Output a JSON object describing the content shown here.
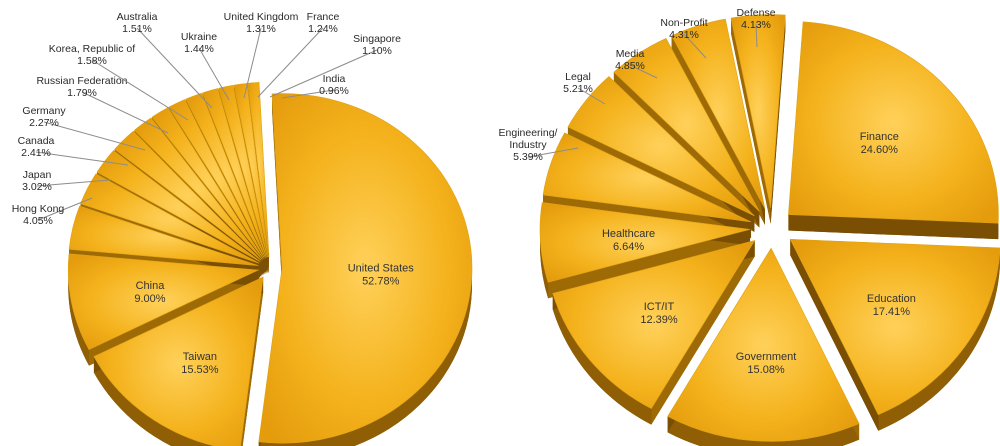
{
  "chart_data": [
    {
      "type": "pie",
      "style": "exploded 3d pie",
      "slice_color": "#F3B019",
      "side_color": "#8F5E05",
      "slices": [
        {
          "label": "United States",
          "value": 52.78,
          "display": "52.78%"
        },
        {
          "label": "Taiwan",
          "value": 15.53,
          "display": "15.53%"
        },
        {
          "label": "China",
          "value": 9.0,
          "display": "9.00%"
        },
        {
          "label": "Hong Kong",
          "value": 4.05,
          "display": "4.05%"
        },
        {
          "label": "Japan",
          "value": 3.02,
          "display": "3.02%"
        },
        {
          "label": "Canada",
          "value": 2.41,
          "display": "2.41%"
        },
        {
          "label": "Germany",
          "value": 2.27,
          "display": "2.27%"
        },
        {
          "label": "Russian Federation",
          "value": 1.79,
          "display": "1.79%"
        },
        {
          "label": "Korea, Republic of",
          "value": 1.58,
          "display": "1.58%"
        },
        {
          "label": "Australia",
          "value": 1.51,
          "display": "1.51%"
        },
        {
          "label": "Ukraine",
          "value": 1.44,
          "display": "1.44%"
        },
        {
          "label": "United Kingdom",
          "value": 1.31,
          "display": "1.31%"
        },
        {
          "label": "France",
          "value": 1.24,
          "display": "1.24%"
        },
        {
          "label": "Singapore",
          "value": 1.1,
          "display": "1.10%"
        },
        {
          "label": "India",
          "value": 0.96,
          "display": "0.96%"
        }
      ]
    },
    {
      "type": "pie",
      "style": "exploded 3d pie",
      "slice_color": "#F3B019",
      "side_color": "#8F5E05",
      "slices": [
        {
          "label": "Finance",
          "value": 24.6,
          "display": "24.60%"
        },
        {
          "label": "Education",
          "value": 17.41,
          "display": "17.41%"
        },
        {
          "label": "Government",
          "value": 15.08,
          "display": "15.08%"
        },
        {
          "label": "ICT/IT",
          "value": 12.39,
          "display": "12.39%"
        },
        {
          "label": "Healthcare",
          "value": 6.64,
          "display": "6.64%"
        },
        {
          "label": "Engineering/\nIndustry",
          "value": 5.39,
          "display": "5.39%"
        },
        {
          "label": "Legal",
          "value": 5.21,
          "display": "5.21%"
        },
        {
          "label": "Media",
          "value": 4.85,
          "display": "4.85%"
        },
        {
          "label": "Non-Profit",
          "value": 4.31,
          "display": "4.31%"
        },
        {
          "label": "Defense",
          "value": 4.13,
          "display": "4.13%"
        }
      ]
    }
  ]
}
